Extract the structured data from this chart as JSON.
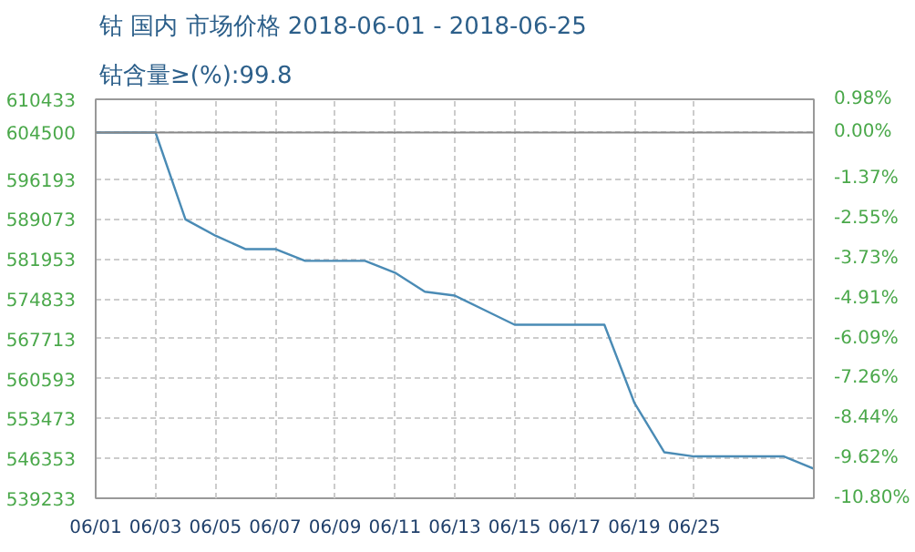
{
  "chart_data": {
    "type": "line",
    "title": "钴 国内 市场价格 2018-06-01 - 2018-06-25",
    "subtitle": "钴含量≥(%):99.8",
    "categories": [
      "06/01",
      null,
      "06/03",
      null,
      "06/05",
      null,
      "06/07",
      null,
      "06/09",
      null,
      "06/11",
      null,
      "06/13",
      null,
      "06/15",
      null,
      "06/17",
      null,
      "06/19",
      null,
      "06/25",
      null,
      null,
      null,
      null
    ],
    "series": [
      {
        "color": "#4a8bb5",
        "values": [
          604500,
          604500,
          604500,
          589000,
          586100,
          583700,
          583700,
          581600,
          581600,
          581600,
          579500,
          576100,
          575400,
          572800,
          570200,
          570200,
          570200,
          570200,
          556300,
          547450,
          546700,
          546700,
          546700,
          546700,
          544500
        ]
      }
    ],
    "ylim": [
      539233,
      610433
    ],
    "yticks": [
      610433,
      604500,
      596193,
      589073,
      581953,
      574833,
      567713,
      560593,
      553473,
      546353,
      539233
    ],
    "y2lim": [
      -10.8,
      0.98
    ],
    "y2ticks": [
      {
        "value": 0.98,
        "label": "0.98%"
      },
      {
        "value": 0.0,
        "label": "0.00%"
      },
      {
        "value": -1.37,
        "label": "-1.37%"
      },
      {
        "value": -2.55,
        "label": "-2.55%"
      },
      {
        "value": -3.73,
        "label": "-3.73%"
      },
      {
        "value": -4.91,
        "label": "-4.91%"
      },
      {
        "value": -6.09,
        "label": "-6.09%"
      },
      {
        "value": -7.26,
        "label": "-7.26%"
      },
      {
        "value": -8.44,
        "label": "-8.44%"
      },
      {
        "value": -9.62,
        "label": "-9.62%"
      },
      {
        "value": -10.8,
        "label": "-10.80%"
      }
    ],
    "ref_lines": [
      {
        "axis": "y",
        "value": 604500,
        "color": "#888888"
      }
    ],
    "grid": true,
    "line_style": "solid"
  }
}
